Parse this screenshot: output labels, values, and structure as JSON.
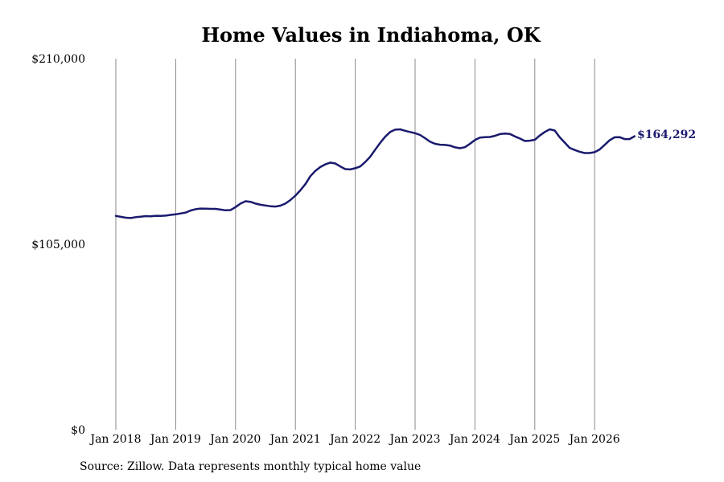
{
  "chart_data": {
    "type": "line",
    "title": "Home Values in Indiahoma, OK",
    "xlabel": "",
    "ylabel": "",
    "x_tick_labels": [
      "Jan 2018",
      "Jan 2019",
      "Jan 2020",
      "Jan 2021",
      "Jan 2022",
      "Jan 2023",
      "Jan 2024",
      "Jan 2025",
      "Jan 2026"
    ],
    "y_tick_labels": [
      "$210,000",
      "$105,000",
      "$0"
    ],
    "y_ticks": [
      210000,
      105000,
      0
    ],
    "ylim": [
      0,
      210000
    ],
    "xlim": [
      "2018-01",
      "2026-07"
    ],
    "grid": "vertical lines at January ticks",
    "line_color": "#1a1a6e",
    "end_label": "$164,292",
    "series": [
      {
        "values": [
          {
            "x": "2018-01",
            "y": 121000
          },
          {
            "x": "2018-02",
            "y": 120500
          },
          {
            "x": "2018-03",
            "y": 120000
          },
          {
            "x": "2018-04",
            "y": 119800
          },
          {
            "x": "2018-05",
            "y": 120300
          },
          {
            "x": "2018-06",
            "y": 120600
          },
          {
            "x": "2018-07",
            "y": 120900
          },
          {
            "x": "2018-08",
            "y": 120800
          },
          {
            "x": "2018-09",
            "y": 121100
          },
          {
            "x": "2018-10",
            "y": 121000
          },
          {
            "x": "2018-11",
            "y": 121200
          },
          {
            "x": "2018-12",
            "y": 121600
          },
          {
            "x": "2019-01",
            "y": 121900
          },
          {
            "x": "2019-02",
            "y": 122400
          },
          {
            "x": "2019-03",
            "y": 122900
          },
          {
            "x": "2019-04",
            "y": 124100
          },
          {
            "x": "2019-05",
            "y": 124800
          },
          {
            "x": "2019-06",
            "y": 125200
          },
          {
            "x": "2019-07",
            "y": 125100
          },
          {
            "x": "2019-08",
            "y": 125000
          },
          {
            "x": "2019-09",
            "y": 125000
          },
          {
            "x": "2019-10",
            "y": 124600
          },
          {
            "x": "2019-11",
            "y": 124200
          },
          {
            "x": "2019-12",
            "y": 124300
          },
          {
            "x": "2020-01",
            "y": 126000
          },
          {
            "x": "2020-02",
            "y": 128000
          },
          {
            "x": "2020-03",
            "y": 129300
          },
          {
            "x": "2020-04",
            "y": 129000
          },
          {
            "x": "2020-05",
            "y": 128000
          },
          {
            "x": "2020-06",
            "y": 127300
          },
          {
            "x": "2020-07",
            "y": 126900
          },
          {
            "x": "2020-08",
            "y": 126500
          },
          {
            "x": "2020-09",
            "y": 126300
          },
          {
            "x": "2020-10",
            "y": 126800
          },
          {
            "x": "2020-11",
            "y": 128000
          },
          {
            "x": "2020-12",
            "y": 130000
          },
          {
            "x": "2021-01",
            "y": 132500
          },
          {
            "x": "2021-02",
            "y": 135500
          },
          {
            "x": "2021-03",
            "y": 139000
          },
          {
            "x": "2021-04",
            "y": 143500
          },
          {
            "x": "2021-05",
            "y": 146500
          },
          {
            "x": "2021-06",
            "y": 148700
          },
          {
            "x": "2021-07",
            "y": 150200
          },
          {
            "x": "2021-08",
            "y": 151200
          },
          {
            "x": "2021-09",
            "y": 150700
          },
          {
            "x": "2021-10",
            "y": 149000
          },
          {
            "x": "2021-11",
            "y": 147500
          },
          {
            "x": "2021-12",
            "y": 147300
          },
          {
            "x": "2022-01",
            "y": 148000
          },
          {
            "x": "2022-02",
            "y": 149000
          },
          {
            "x": "2022-03",
            "y": 151500
          },
          {
            "x": "2022-04",
            "y": 154500
          },
          {
            "x": "2022-05",
            "y": 158500
          },
          {
            "x": "2022-06",
            "y": 162300
          },
          {
            "x": "2022-07",
            "y": 165800
          },
          {
            "x": "2022-08",
            "y": 168500
          },
          {
            "x": "2022-09",
            "y": 169800
          },
          {
            "x": "2022-10",
            "y": 170000
          },
          {
            "x": "2022-11",
            "y": 169200
          },
          {
            "x": "2022-12",
            "y": 168500
          },
          {
            "x": "2023-01",
            "y": 167800
          },
          {
            "x": "2023-02",
            "y": 166800
          },
          {
            "x": "2023-03",
            "y": 165000
          },
          {
            "x": "2023-04",
            "y": 163000
          },
          {
            "x": "2023-05",
            "y": 161800
          },
          {
            "x": "2023-06",
            "y": 161300
          },
          {
            "x": "2023-07",
            "y": 161200
          },
          {
            "x": "2023-08",
            "y": 160800
          },
          {
            "x": "2023-09",
            "y": 159800
          },
          {
            "x": "2023-10",
            "y": 159300
          },
          {
            "x": "2023-11",
            "y": 159900
          },
          {
            "x": "2023-12",
            "y": 161800
          },
          {
            "x": "2024-01",
            "y": 164000
          },
          {
            "x": "2024-02",
            "y": 165300
          },
          {
            "x": "2024-03",
            "y": 165600
          },
          {
            "x": "2024-04",
            "y": 165700
          },
          {
            "x": "2024-05",
            "y": 166300
          },
          {
            "x": "2024-06",
            "y": 167300
          },
          {
            "x": "2024-07",
            "y": 167600
          },
          {
            "x": "2024-08",
            "y": 167400
          },
          {
            "x": "2024-09",
            "y": 166000
          },
          {
            "x": "2024-10",
            "y": 164800
          },
          {
            "x": "2024-11",
            "y": 163400
          },
          {
            "x": "2024-12",
            "y": 163600
          },
          {
            "x": "2025-01",
            "y": 164100
          },
          {
            "x": "2025-02",
            "y": 166500
          },
          {
            "x": "2025-03",
            "y": 168500
          },
          {
            "x": "2025-04",
            "y": 170000
          },
          {
            "x": "2025-05",
            "y": 169300
          },
          {
            "x": "2025-06",
            "y": 165500
          },
          {
            "x": "2025-07",
            "y": 162500
          },
          {
            "x": "2025-08",
            "y": 159500
          },
          {
            "x": "2025-09",
            "y": 158300
          },
          {
            "x": "2025-10",
            "y": 157300
          },
          {
            "x": "2025-11",
            "y": 156600
          },
          {
            "x": "2025-12",
            "y": 156600
          },
          {
            "x": "2026-01",
            "y": 157100
          },
          {
            "x": "2026-02",
            "y": 158600
          },
          {
            "x": "2026-03",
            "y": 161200
          },
          {
            "x": "2026-04",
            "y": 163800
          },
          {
            "x": "2026-05",
            "y": 165500
          },
          {
            "x": "2026-06",
            "y": 165600
          },
          {
            "x": "2026-07",
            "y": 164500
          },
          {
            "x": "2026-08",
            "y": 164500
          },
          {
            "x": "2026-09",
            "y": 166100
          }
        ]
      }
    ]
  },
  "footer": {
    "source_text": "Source: Zillow. Data represents monthly typical home value"
  }
}
